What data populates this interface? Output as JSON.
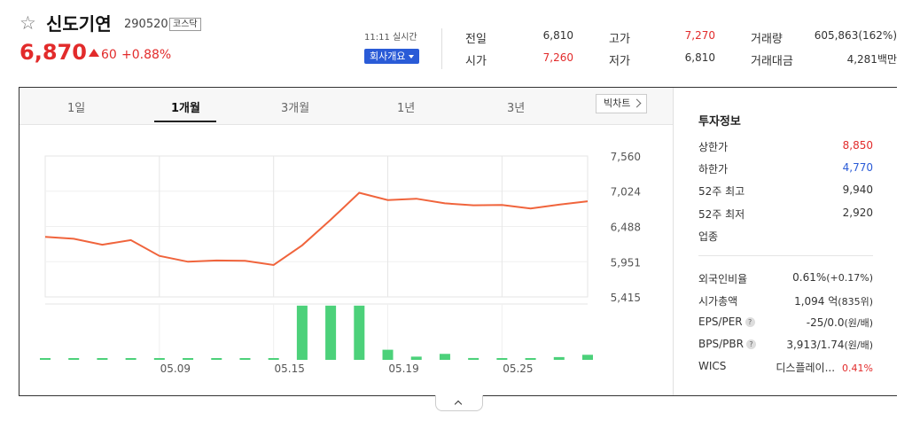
{
  "header": {
    "name": "신도기연",
    "code": "290520",
    "market_badge": "코스닥",
    "price": "6,870",
    "change": "60",
    "change_rate": "+0.88%",
    "update_time": "11:11 실시간",
    "company_button": "회사개요",
    "colors": {
      "up": "#e22b2b",
      "down": "#2a5bd7"
    }
  },
  "quotes": [
    {
      "label": "전일",
      "value": "6,810",
      "color": "#333333"
    },
    {
      "label": "고가",
      "value": "7,270",
      "color": "#e22b2b"
    },
    {
      "label": "거래량",
      "value": "605,863(162%)",
      "color": "#333333"
    },
    {
      "label": "시가",
      "value": "7,260",
      "color": "#e22b2b"
    },
    {
      "label": "저가",
      "value": "6,810",
      "color": "#333333"
    },
    {
      "label": "거래대금",
      "value": "4,281백만",
      "color": "#333333"
    }
  ],
  "tabs": [
    "1일",
    "1개월",
    "3개월",
    "1년",
    "3년"
  ],
  "active_tab": "1개월",
  "chart_button": "빅차트",
  "chart_data": {
    "type": "line",
    "price_series": [
      6330,
      6300,
      6210,
      6280,
      6040,
      5950,
      5970,
      5965,
      5900,
      6200,
      6590,
      7000,
      6890,
      6910,
      6840,
      6810,
      6815,
      6760,
      6820,
      6870
    ],
    "volume_series": [
      20000,
      8000,
      15000,
      20000,
      12000,
      8000,
      10000,
      10000,
      8000,
      1180000,
      1180000,
      1180000,
      220000,
      70000,
      130000,
      40000,
      30000,
      30000,
      60000,
      110000
    ],
    "y_ticks": [
      "7,560",
      "7,024",
      "6,488",
      "5,951",
      "5,415"
    ],
    "y_tick_values": [
      7560,
      7024,
      6488,
      5951,
      5415
    ],
    "x_ticks": [
      "05.09",
      "05.15",
      "05.19",
      "05.25"
    ],
    "x_tick_index": [
      4,
      8,
      12,
      16
    ],
    "line_color": "#f0643c",
    "volume_color": "#4cd17a"
  },
  "invest": {
    "title": "투자정보",
    "rows": [
      {
        "label": "상한가",
        "value": "8,850",
        "color": "#e22b2b"
      },
      {
        "label": "하한가",
        "value": "4,770",
        "color": "#2a5bd7"
      },
      {
        "label": "52주 최고",
        "value": "9,940",
        "color": "#333333"
      },
      {
        "label": "52주 최저",
        "value": "2,920",
        "color": "#333333"
      },
      {
        "label": "업종",
        "value": "",
        "color": "#333333"
      }
    ],
    "rows2": [
      {
        "label": "외국인비율",
        "value": "0.61%",
        "sub": "(+0.17%)",
        "help": false
      },
      {
        "label": "시가총액",
        "value": "1,094 억",
        "sub": "(835위)",
        "help": false
      },
      {
        "label": "EPS/PER",
        "value": "-25/0.0",
        "sub": "(원/배)",
        "help": true
      },
      {
        "label": "BPS/PBR",
        "value": "3,913/1.74",
        "sub": "(원/배)",
        "help": true
      },
      {
        "label": "WICS",
        "value": "디스플레이...",
        "sub": "0.41%",
        "help": false
      }
    ],
    "help_glyph": "?"
  }
}
